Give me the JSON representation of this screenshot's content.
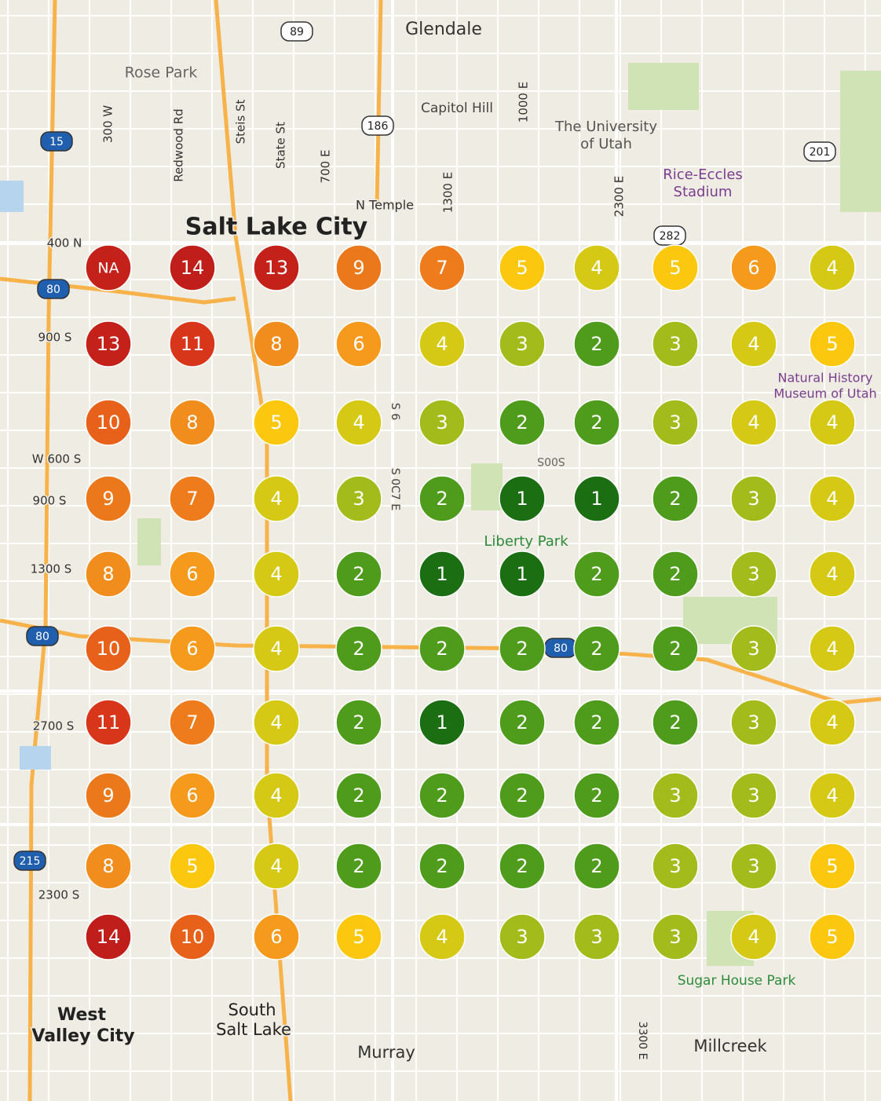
{
  "map": {
    "labels": [
      "Glendale",
      "Rose Park",
      "300 W",
      "Redwood Rd",
      "Steis St",
      "State St",
      "700 E",
      "Capitol Hill",
      "1000 E",
      "The University",
      "of Utah",
      "Rice-Eccles",
      "Stadium",
      "1300 E",
      "N Temple",
      "Salt Lake City",
      "2300 E",
      "400 N",
      "900 S",
      "W 600 S",
      "900 S",
      "1300 S",
      "2700 S",
      "2300 S",
      "Natural History",
      "Museum of Utah",
      "S 6",
      "S 0C7 E",
      "S00S",
      "Liberty Park",
      "Sugar House Park",
      "West",
      "Valley City",
      "South",
      "Salt Lake",
      "Murray",
      "Millcreek",
      "3300 E"
    ],
    "shields": [
      "89",
      "186",
      "15",
      "80",
      "80",
      "80",
      "201",
      "282",
      "215"
    ]
  },
  "grid": {
    "rows": [
      [
        "NA",
        14,
        13,
        9,
        7,
        5,
        4,
        5,
        6,
        4
      ],
      [
        13,
        11,
        8,
        6,
        4,
        3,
        2,
        3,
        4,
        5
      ],
      [
        10,
        8,
        5,
        4,
        3,
        2,
        2,
        3,
        4,
        4
      ],
      [
        9,
        7,
        4,
        3,
        2,
        1,
        1,
        2,
        3,
        4
      ],
      [
        8,
        6,
        4,
        2,
        1,
        1,
        2,
        2,
        3,
        4
      ],
      [
        10,
        6,
        4,
        2,
        2,
        2,
        2,
        2,
        3,
        4
      ],
      [
        11,
        7,
        4,
        2,
        1,
        2,
        2,
        2,
        3,
        4
      ],
      [
        9,
        6,
        4,
        2,
        2,
        2,
        2,
        3,
        3,
        4
      ],
      [
        8,
        5,
        4,
        2,
        2,
        2,
        2,
        3,
        3,
        5
      ],
      [
        14,
        10,
        6,
        5,
        4,
        3,
        3,
        3,
        4,
        5
      ]
    ]
  }
}
